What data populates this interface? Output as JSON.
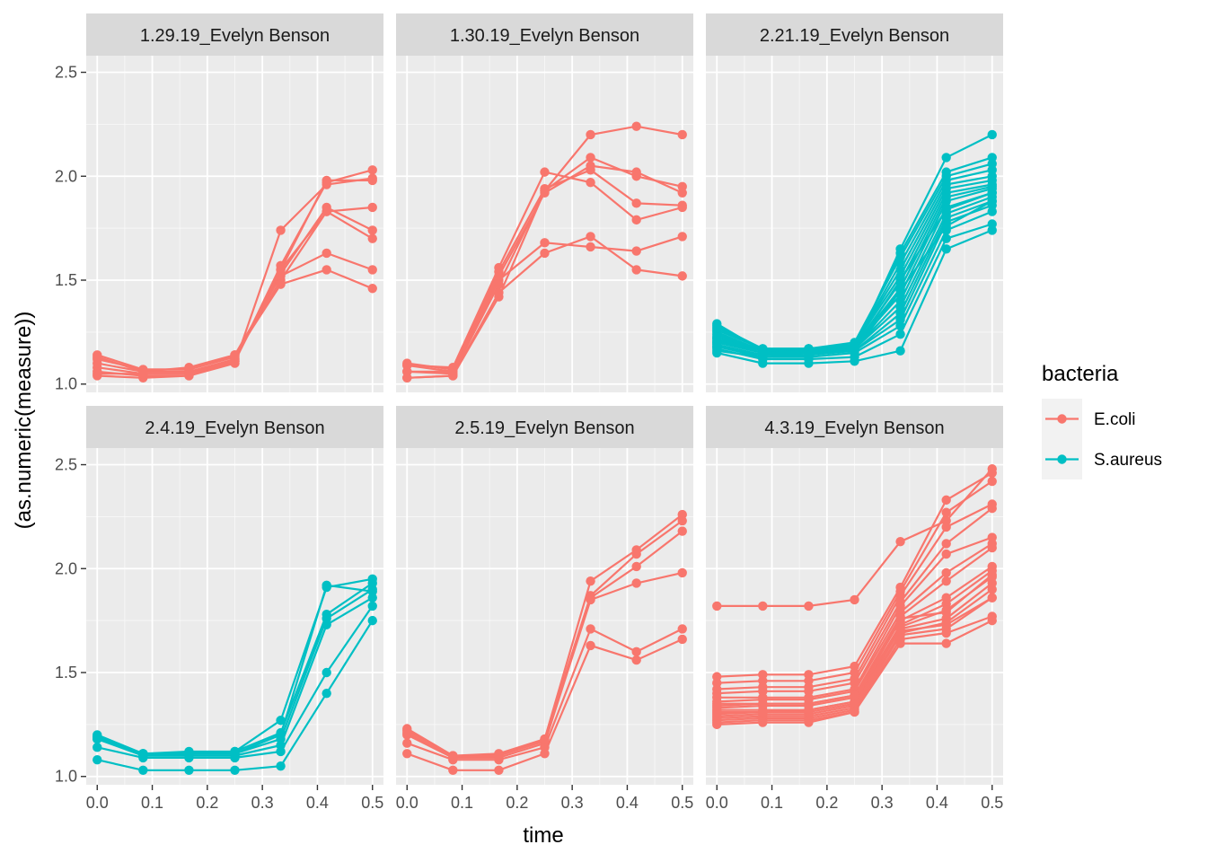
{
  "chart_data": {
    "type": "line",
    "xlabel": "time",
    "ylabel": "(as.numeric(measure))",
    "xlim": [
      -0.02,
      0.52
    ],
    "ylim": [
      0.96,
      2.58
    ],
    "x_ticks": [
      "0.0",
      "0.1",
      "0.2",
      "0.3",
      "0.4",
      "0.5"
    ],
    "y_ticks": [
      "1.0",
      "1.5",
      "2.0",
      "2.5"
    ],
    "x_tick_values": [
      0,
      0.1,
      0.2,
      0.3,
      0.4,
      0.5
    ],
    "y_tick_values": [
      1.0,
      1.5,
      2.0,
      2.5
    ],
    "time_points": [
      0,
      0.0833,
      0.1667,
      0.25,
      0.3333,
      0.4167,
      0.5
    ],
    "legend": {
      "title": "bacteria",
      "placement": "right",
      "entries": [
        {
          "label": "E.coli",
          "color": "#F8766D"
        },
        {
          "label": "S.aureus",
          "color": "#00BFC4"
        }
      ]
    },
    "panel_background": "#EBEBEB",
    "grid": true,
    "facets": [
      {
        "label": "1.29.19_Evelyn Benson",
        "bacteria": "E.coli",
        "series": [
          {
            "values": [
              1.04,
              1.03,
              1.04,
              1.1,
              1.74,
              1.96,
              1.99
            ]
          },
          {
            "values": [
              1.06,
              1.04,
              1.04,
              1.11,
              1.57,
              1.97,
              2.03
            ]
          },
          {
            "values": [
              1.08,
              1.05,
              1.05,
              1.12,
              1.55,
              1.83,
              1.85
            ]
          },
          {
            "values": [
              1.1,
              1.06,
              1.06,
              1.12,
              1.53,
              1.85,
              1.74
            ]
          },
          {
            "values": [
              1.12,
              1.07,
              1.07,
              1.13,
              1.5,
              1.83,
              1.7
            ]
          },
          {
            "values": [
              1.13,
              1.06,
              1.08,
              1.14,
              1.52,
              1.63,
              1.55
            ]
          },
          {
            "values": [
              1.14,
              1.07,
              1.07,
              1.14,
              1.48,
              1.55,
              1.46
            ]
          },
          {
            "values": [
              1.05,
              1.05,
              1.05,
              1.11,
              1.55,
              1.98,
              1.98
            ]
          }
        ]
      },
      {
        "label": "1.30.19_Evelyn Benson",
        "bacteria": "E.coli",
        "series": [
          {
            "values": [
              1.03,
              1.04,
              1.42,
              1.93,
              2.2,
              2.24,
              2.2
            ]
          },
          {
            "values": [
              1.06,
              1.05,
              1.48,
              1.93,
              2.09,
              2.0,
              1.95
            ]
          },
          {
            "values": [
              1.09,
              1.06,
              1.52,
              1.92,
              2.05,
              2.02,
              1.92
            ]
          },
          {
            "values": [
              1.1,
              1.07,
              1.54,
              1.94,
              2.03,
              1.87,
              1.86
            ]
          },
          {
            "values": [
              1.09,
              1.08,
              1.56,
              2.02,
              1.97,
              1.79,
              1.85
            ]
          },
          {
            "values": [
              1.06,
              1.06,
              1.5,
              1.68,
              1.66,
              1.64,
              1.71
            ]
          },
          {
            "values": [
              1.03,
              1.04,
              1.44,
              1.63,
              1.71,
              1.55,
              1.52
            ]
          }
        ]
      },
      {
        "label": "2.21.19_Evelyn Benson",
        "bacteria": "S.aureus",
        "series": [
          {
            "values": [
              1.15,
              1.1,
              1.1,
              1.11,
              1.16,
              1.65,
              1.74
            ]
          },
          {
            "values": [
              1.17,
              1.12,
              1.12,
              1.13,
              1.24,
              1.7,
              1.77
            ]
          },
          {
            "values": [
              1.18,
              1.13,
              1.13,
              1.15,
              1.28,
              1.74,
              1.83
            ]
          },
          {
            "values": [
              1.19,
              1.14,
              1.14,
              1.16,
              1.31,
              1.78,
              1.86
            ]
          },
          {
            "values": [
              1.2,
              1.15,
              1.15,
              1.16,
              1.34,
              1.8,
              1.88
            ]
          },
          {
            "values": [
              1.21,
              1.15,
              1.15,
              1.17,
              1.37,
              1.82,
              1.9
            ]
          },
          {
            "values": [
              1.22,
              1.16,
              1.16,
              1.17,
              1.4,
              1.85,
              1.92
            ]
          },
          {
            "values": [
              1.23,
              1.16,
              1.16,
              1.18,
              1.43,
              1.88,
              1.94
            ]
          },
          {
            "values": [
              1.24,
              1.16,
              1.16,
              1.18,
              1.46,
              1.9,
              1.95
            ]
          },
          {
            "values": [
              1.25,
              1.16,
              1.17,
              1.18,
              1.49,
              1.92,
              1.96
            ]
          },
          {
            "values": [
              1.26,
              1.17,
              1.17,
              1.19,
              1.52,
              1.94,
              1.98
            ]
          },
          {
            "values": [
              1.27,
              1.17,
              1.17,
              1.19,
              1.55,
              1.96,
              2.0
            ]
          },
          {
            "values": [
              1.28,
              1.17,
              1.17,
              1.19,
              1.58,
              1.98,
              2.03
            ]
          },
          {
            "values": [
              1.29,
              1.16,
              1.17,
              1.2,
              1.61,
              2.0,
              2.06
            ]
          },
          {
            "values": [
              1.2,
              1.15,
              1.16,
              1.18,
              1.63,
              2.02,
              2.09
            ]
          },
          {
            "values": [
              1.18,
              1.14,
              1.15,
              1.17,
              1.65,
              2.09,
              2.2
            ]
          },
          {
            "values": [
              1.22,
              1.15,
              1.15,
              1.17,
              1.5,
              1.84,
              1.92
            ]
          },
          {
            "values": [
              1.16,
              1.13,
              1.14,
              1.16,
              1.45,
              1.76,
              1.88
            ]
          }
        ]
      },
      {
        "label": "2.4.19_Evelyn Benson",
        "bacteria": "S.aureus",
        "series": [
          {
            "values": [
              1.08,
              1.03,
              1.03,
              1.03,
              1.05,
              1.4,
              1.75
            ]
          },
          {
            "values": [
              1.14,
              1.09,
              1.09,
              1.09,
              1.12,
              1.5,
              1.82
            ]
          },
          {
            "values": [
              1.18,
              1.1,
              1.1,
              1.1,
              1.15,
              1.73,
              1.86
            ]
          },
          {
            "values": [
              1.19,
              1.11,
              1.11,
              1.11,
              1.18,
              1.76,
              1.9
            ]
          },
          {
            "values": [
              1.2,
              1.11,
              1.12,
              1.12,
              1.21,
              1.78,
              1.93
            ]
          },
          {
            "values": [
              1.19,
              1.1,
              1.11,
              1.12,
              1.27,
              1.91,
              1.95
            ]
          },
          {
            "values": [
              1.18,
              1.11,
              1.11,
              1.11,
              1.2,
              1.92,
              1.89
            ]
          }
        ]
      },
      {
        "label": "2.5.19_Evelyn Benson",
        "bacteria": "E.coli",
        "series": [
          {
            "values": [
              1.11,
              1.03,
              1.03,
              1.11,
              1.63,
              1.56,
              1.66
            ]
          },
          {
            "values": [
              1.16,
              1.08,
              1.08,
              1.14,
              1.71,
              1.6,
              1.71
            ]
          },
          {
            "values": [
              1.2,
              1.09,
              1.09,
              1.16,
              1.85,
              1.93,
              1.98
            ]
          },
          {
            "values": [
              1.22,
              1.1,
              1.1,
              1.17,
              1.86,
              2.01,
              2.18
            ]
          },
          {
            "values": [
              1.23,
              1.1,
              1.11,
              1.18,
              1.87,
              2.07,
              2.23
            ]
          },
          {
            "values": [
              1.21,
              1.09,
              1.1,
              1.18,
              1.94,
              2.09,
              2.26
            ]
          }
        ]
      },
      {
        "label": "4.3.19_Evelyn Benson",
        "bacteria": "E.coli",
        "series": [
          {
            "values": [
              1.82,
              1.82,
              1.82,
              1.85,
              2.13,
              2.23,
              2.48
            ]
          },
          {
            "values": [
              1.48,
              1.49,
              1.49,
              1.53,
              1.91,
              2.33,
              2.46
            ]
          },
          {
            "values": [
              1.45,
              1.46,
              1.46,
              1.5,
              1.89,
              2.27,
              2.42
            ]
          },
          {
            "values": [
              1.42,
              1.43,
              1.43,
              1.47,
              1.87,
              2.2,
              2.31
            ]
          },
          {
            "values": [
              1.4,
              1.41,
              1.41,
              1.45,
              1.84,
              2.12,
              2.29
            ]
          },
          {
            "values": [
              1.38,
              1.38,
              1.38,
              1.42,
              1.82,
              2.07,
              2.15
            ]
          },
          {
            "values": [
              1.36,
              1.37,
              1.37,
              1.41,
              1.79,
              1.98,
              2.12
            ]
          },
          {
            "values": [
              1.35,
              1.35,
              1.35,
              1.39,
              1.77,
              1.94,
              2.1
            ]
          },
          {
            "values": [
              1.33,
              1.34,
              1.34,
              1.38,
              1.75,
              1.86,
              2.01
            ]
          },
          {
            "values": [
              1.32,
              1.32,
              1.32,
              1.36,
              1.73,
              1.83,
              1.99
            ]
          },
          {
            "values": [
              1.3,
              1.31,
              1.31,
              1.35,
              1.72,
              1.8,
              1.96
            ]
          },
          {
            "values": [
              1.29,
              1.3,
              1.3,
              1.34,
              1.71,
              1.76,
              1.93
            ]
          },
          {
            "values": [
              1.28,
              1.29,
              1.29,
              1.33,
              1.69,
              1.74,
              1.9
            ]
          },
          {
            "values": [
              1.27,
              1.28,
              1.28,
              1.32,
              1.68,
              1.71,
              1.86
            ]
          },
          {
            "values": [
              1.26,
              1.27,
              1.27,
              1.31,
              1.66,
              1.69,
              1.77
            ]
          },
          {
            "values": [
              1.25,
              1.26,
              1.26,
              1.31,
              1.64,
              1.64,
              1.75
            ]
          },
          {
            "values": [
              1.31,
              1.31,
              1.32,
              1.36,
              1.76,
              1.79,
              1.97
            ]
          },
          {
            "values": [
              1.34,
              1.35,
              1.35,
              1.39,
              1.7,
              1.73,
              1.86
            ]
          }
        ]
      }
    ]
  }
}
